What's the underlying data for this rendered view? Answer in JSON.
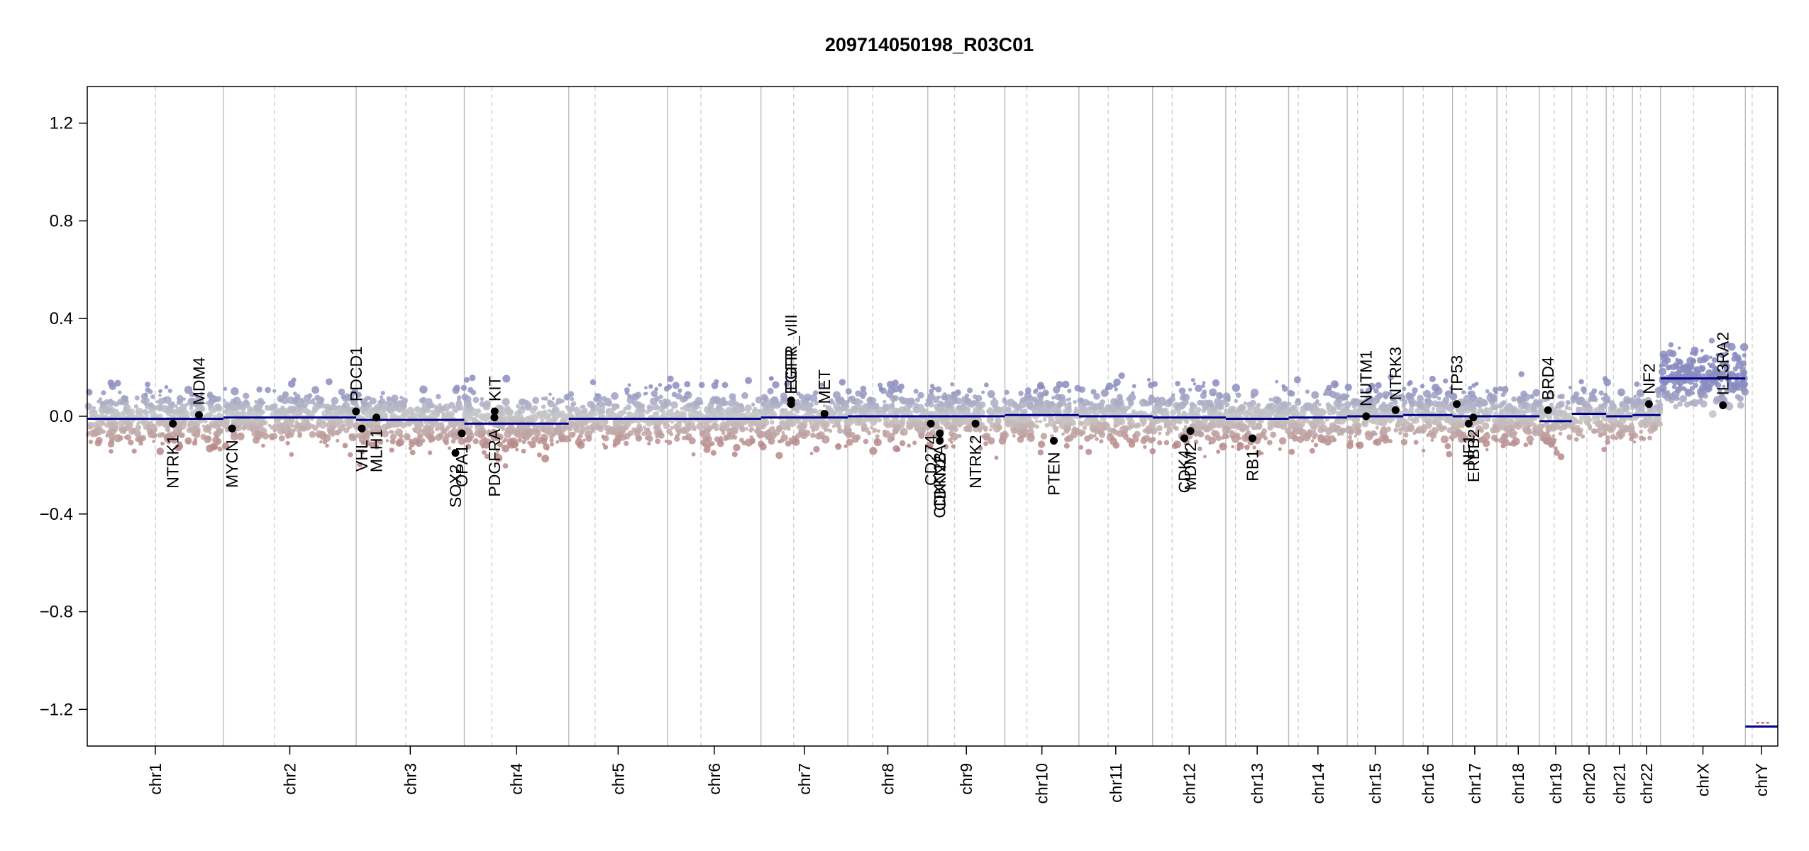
{
  "chart_data": {
    "type": "scatter",
    "title": "209714050198_R03C01",
    "xlabel": "",
    "ylabel": "",
    "ylim": [
      -1.35,
      1.35
    ],
    "yticks": [
      1.2,
      0.8,
      0.4,
      0.0,
      -0.4,
      -0.8,
      -1.2
    ],
    "ytick_labels": [
      "1.2",
      "0.8",
      "0.4",
      "0.0",
      "−0.4",
      "−0.8",
      "−1.2"
    ],
    "grid": false,
    "legend": "none",
    "colors": {
      "gain": "#8a8cc0",
      "loss": "#b88888",
      "neutral": "#c8c8c8",
      "segment": "#00008b",
      "marker": "#000000",
      "chr_boundary": "#bbbbbb",
      "centromere": "#cfcfcf"
    },
    "chromosomes": [
      {
        "name": "chr1",
        "start": 0.0,
        "length": 249.3,
        "cen": 125.0
      },
      {
        "name": "chr2",
        "start": 249.3,
        "length": 243.2,
        "cen": 93.3
      },
      {
        "name": "chr3",
        "start": 492.5,
        "length": 198.0,
        "cen": 91.0
      },
      {
        "name": "chr4",
        "start": 690.5,
        "length": 191.2,
        "cen": 50.4
      },
      {
        "name": "chr5",
        "start": 881.7,
        "length": 180.9,
        "cen": 48.4
      },
      {
        "name": "chr6",
        "start": 1062.6,
        "length": 171.1,
        "cen": 61.0
      },
      {
        "name": "chr7",
        "start": 1233.7,
        "length": 159.1,
        "cen": 59.9
      },
      {
        "name": "chr8",
        "start": 1392.8,
        "length": 146.4,
        "cen": 45.6
      },
      {
        "name": "chr9",
        "start": 1539.2,
        "length": 141.2,
        "cen": 49.0
      },
      {
        "name": "chr10",
        "start": 1680.4,
        "length": 135.5,
        "cen": 40.2
      },
      {
        "name": "chr11",
        "start": 1815.9,
        "length": 135.0,
        "cen": 53.7
      },
      {
        "name": "chr12",
        "start": 1950.9,
        "length": 133.9,
        "cen": 35.8
      },
      {
        "name": "chr13",
        "start": 2084.8,
        "length": 115.2,
        "cen": 17.9
      },
      {
        "name": "chr14",
        "start": 2200.0,
        "length": 107.3,
        "cen": 17.6
      },
      {
        "name": "chr15",
        "start": 2307.3,
        "length": 102.5,
        "cen": 19.0
      },
      {
        "name": "chr16",
        "start": 2409.8,
        "length": 90.4,
        "cen": 36.6
      },
      {
        "name": "chr17",
        "start": 2500.2,
        "length": 81.2,
        "cen": 24.0
      },
      {
        "name": "chr18",
        "start": 2581.4,
        "length": 78.1,
        "cen": 17.2
      },
      {
        "name": "chr19",
        "start": 2659.5,
        "length": 59.1,
        "cen": 26.5
      },
      {
        "name": "chr20",
        "start": 2718.6,
        "length": 63.0,
        "cen": 27.5
      },
      {
        "name": "chr21",
        "start": 2781.6,
        "length": 48.1,
        "cen": 13.2
      },
      {
        "name": "chr22",
        "start": 2829.7,
        "length": 51.3,
        "cen": 14.7
      },
      {
        "name": "chrX",
        "start": 2881.0,
        "length": 155.3,
        "cen": 60.6
      },
      {
        "name": "chrY",
        "start": 3036.3,
        "length": 59.4,
        "cen": 12.5
      }
    ],
    "segments": [
      {
        "chr": "chr1",
        "start": 0.0,
        "end": 249.3,
        "value": -0.01
      },
      {
        "chr": "chr2",
        "start": 249.3,
        "end": 492.5,
        "value": -0.005
      },
      {
        "chr": "chr3",
        "start": 492.5,
        "end": 690.5,
        "value": -0.015
      },
      {
        "chr": "chr4",
        "start": 690.5,
        "end": 881.7,
        "value": -0.03
      },
      {
        "chr": "chr5",
        "start": 881.7,
        "end": 1062.6,
        "value": -0.01
      },
      {
        "chr": "chr6",
        "start": 1062.6,
        "end": 1233.7,
        "value": -0.01
      },
      {
        "chr": "chr7",
        "start": 1233.7,
        "end": 1392.8,
        "value": -0.005
      },
      {
        "chr": "chr8",
        "start": 1392.8,
        "end": 1539.2,
        "value": 0.0
      },
      {
        "chr": "chr9",
        "start": 1539.2,
        "end": 1680.4,
        "value": 0.0
      },
      {
        "chr": "chr10",
        "start": 1680.4,
        "end": 1815.9,
        "value": 0.005
      },
      {
        "chr": "chr11",
        "start": 1815.9,
        "end": 1950.9,
        "value": 0.0
      },
      {
        "chr": "chr12",
        "start": 1950.9,
        "end": 2084.8,
        "value": -0.005
      },
      {
        "chr": "chr13",
        "start": 2084.8,
        "end": 2200.0,
        "value": -0.01
      },
      {
        "chr": "chr14",
        "start": 2200.0,
        "end": 2307.3,
        "value": -0.005
      },
      {
        "chr": "chr15",
        "start": 2307.3,
        "end": 2409.8,
        "value": 0.0
      },
      {
        "chr": "chr16",
        "start": 2409.8,
        "end": 2500.2,
        "value": 0.005
      },
      {
        "chr": "chr17",
        "start": 2500.2,
        "end": 2581.4,
        "value": 0.0
      },
      {
        "chr": "chr18",
        "start": 2581.4,
        "end": 2659.5,
        "value": 0.0
      },
      {
        "chr": "chr19",
        "start": 2659.5,
        "end": 2718.6,
        "value": -0.02
      },
      {
        "chr": "chr20",
        "start": 2718.6,
        "end": 2781.6,
        "value": 0.01
      },
      {
        "chr": "chr21",
        "start": 2781.6,
        "end": 2829.7,
        "value": 0.0
      },
      {
        "chr": "chr22",
        "start": 2829.7,
        "end": 2881.0,
        "value": 0.005
      },
      {
        "chr": "chrX",
        "start": 2881.0,
        "end": 3036.3,
        "value": 0.155
      },
      {
        "chr": "chrY",
        "start": 3036.3,
        "end": 3095.7,
        "value": -1.27
      }
    ],
    "genes": [
      {
        "name": "NTRK1",
        "chr": "chr1",
        "pos": 156.8,
        "value": -0.03,
        "label_side": "below"
      },
      {
        "name": "MDM4",
        "chr": "chr1",
        "pos": 204.5,
        "value": 0.005,
        "label_side": "above"
      },
      {
        "name": "MYCN",
        "chr": "chr2",
        "pos": 15.9,
        "value": -0.05,
        "label_side": "below"
      },
      {
        "name": "PDCD1",
        "chr": "chr2",
        "pos": 242.8,
        "value": 0.02,
        "label_side": "above"
      },
      {
        "name": "VHL",
        "chr": "chr3",
        "pos": 10.2,
        "value": -0.05,
        "label_side": "below"
      },
      {
        "name": "MLH1",
        "chr": "chr3",
        "pos": 37.0,
        "value": -0.005,
        "label_side": "below"
      },
      {
        "name": "SOX2",
        "chr": "chr3",
        "pos": 181.7,
        "value": -0.15,
        "label_side": "below"
      },
      {
        "name": "OPA1",
        "chr": "chr3",
        "pos": 193.3,
        "value": -0.07,
        "label_side": "below"
      },
      {
        "name": "PDGFRA",
        "chr": "chr4",
        "pos": 55.1,
        "value": -0.005,
        "label_side": "below"
      },
      {
        "name": "KIT",
        "chr": "chr4",
        "pos": 55.5,
        "value": 0.02,
        "label_side": "above"
      },
      {
        "name": "EGFR",
        "chr": "chr7",
        "pos": 55.2,
        "value": 0.05,
        "label_side": "above"
      },
      {
        "name": "EGFR_vIII",
        "chr": "chr7",
        "pos": 55.3,
        "value": 0.065,
        "label_side": "above"
      },
      {
        "name": "MET",
        "chr": "chr7",
        "pos": 116.3,
        "value": 0.01,
        "label_side": "above"
      },
      {
        "name": "CD274",
        "chr": "chr9",
        "pos": 5.5,
        "value": -0.03,
        "label_side": "below"
      },
      {
        "name": "CDKN2B",
        "chr": "chr9",
        "pos": 21.9,
        "value": -0.1,
        "label_side": "below"
      },
      {
        "name": "CDKN2A",
        "chr": "chr9",
        "pos": 22.0,
        "value": -0.07,
        "label_side": "below"
      },
      {
        "name": "NTRK2",
        "chr": "chr9",
        "pos": 87.3,
        "value": -0.03,
        "label_side": "below"
      },
      {
        "name": "PTEN",
        "chr": "chr10",
        "pos": 89.6,
        "value": -0.1,
        "label_side": "below"
      },
      {
        "name": "CDK4",
        "chr": "chr12",
        "pos": 58.1,
        "value": -0.09,
        "label_side": "below"
      },
      {
        "name": "MDM2",
        "chr": "chr12",
        "pos": 69.2,
        "value": -0.06,
        "label_side": "below"
      },
      {
        "name": "RB1",
        "chr": "chr13",
        "pos": 48.9,
        "value": -0.09,
        "label_side": "below"
      },
      {
        "name": "NUTM1",
        "chr": "chr15",
        "pos": 34.6,
        "value": 0.0,
        "label_side": "above"
      },
      {
        "name": "NTRK3",
        "chr": "chr15",
        "pos": 88.4,
        "value": 0.025,
        "label_side": "above"
      },
      {
        "name": "TP53",
        "chr": "chr17",
        "pos": 7.6,
        "value": 0.05,
        "label_side": "above"
      },
      {
        "name": "NF1",
        "chr": "chr17",
        "pos": 29.6,
        "value": -0.03,
        "label_side": "below"
      },
      {
        "name": "ERBB2",
        "chr": "chr17",
        "pos": 37.9,
        "value": -0.005,
        "label_side": "below"
      },
      {
        "name": "BRD4",
        "chr": "chr19",
        "pos": 15.4,
        "value": 0.025,
        "label_side": "above"
      },
      {
        "name": "NF2",
        "chr": "chr22",
        "pos": 30.0,
        "value": 0.05,
        "label_side": "above"
      },
      {
        "name": "IL13RA2",
        "chr": "chrX",
        "pos": 114.3,
        "value": 0.045,
        "label_side": "above"
      }
    ],
    "probe_noise": {
      "sd": 0.055,
      "probes_per_mb": 1.6
    }
  }
}
